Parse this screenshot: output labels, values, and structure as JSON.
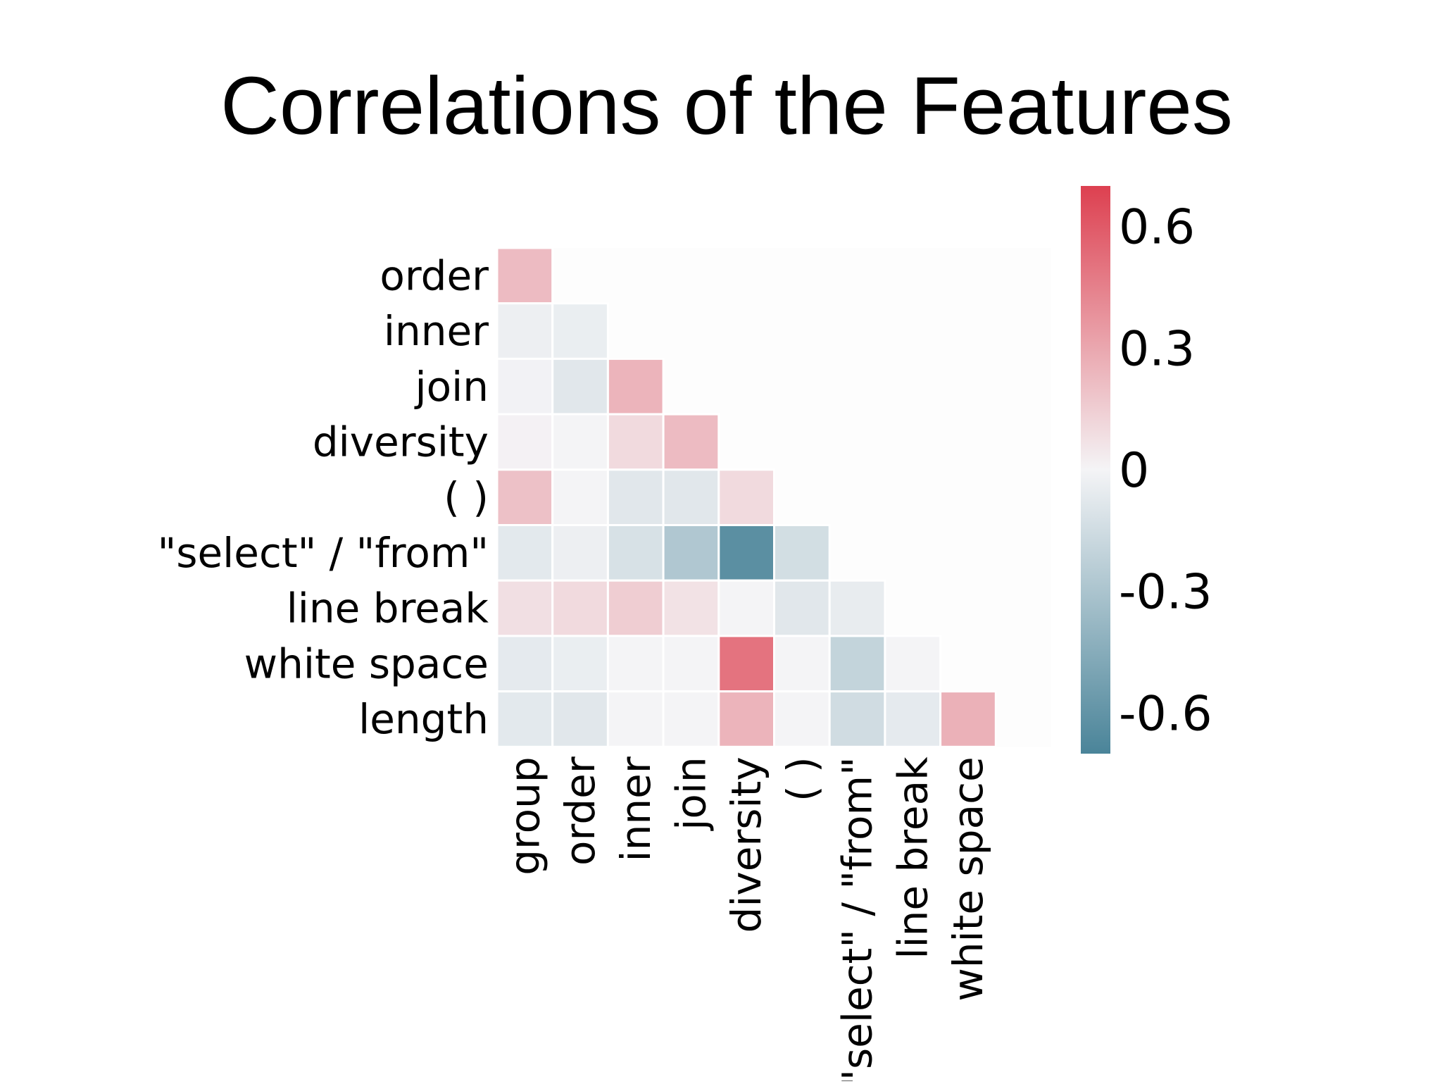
{
  "chart_data": {
    "type": "heatmap",
    "title": "Correlations of the Features",
    "row_labels": [
      "order",
      "inner",
      "join",
      "diversity",
      "( )",
      "\"select\" / \"from\"",
      "line break",
      "white space",
      "length"
    ],
    "col_labels": [
      "group",
      "order",
      "inner",
      "join",
      "diversity",
      "( )",
      "\"select\" / \"from\"",
      "line break",
      "white space"
    ],
    "values": [
      [
        0.22
      ],
      [
        -0.03,
        -0.04
      ],
      [
        -0.01,
        -0.08,
        0.25
      ],
      [
        0.01,
        0.0,
        0.1,
        0.22
      ],
      [
        0.2,
        0.0,
        -0.08,
        -0.08,
        0.1
      ],
      [
        -0.07,
        -0.03,
        -0.12,
        -0.28,
        -0.63,
        -0.14
      ],
      [
        0.08,
        0.1,
        0.15,
        0.07,
        0.0,
        -0.08,
        -0.05
      ],
      [
        -0.06,
        -0.04,
        0.0,
        0.0,
        0.5,
        0.0,
        -0.2,
        0.0
      ],
      [
        -0.07,
        -0.08,
        0.0,
        0.0,
        0.25,
        0.0,
        -0.15,
        -0.06,
        0.26
      ]
    ],
    "mask": "upper-triangle",
    "colorbar": {
      "range": [
        -0.7,
        0.7
      ],
      "ticks": [
        0.6,
        0.3,
        0,
        -0.3,
        -0.6
      ],
      "tick_labels": [
        "0.6",
        "0.3",
        "0",
        "-0.3",
        "-0.6"
      ],
      "colormap": "diverging",
      "low_color": "#4a8499",
      "mid_color": "#f4f4f6",
      "high_color": "#dd4050"
    },
    "grid": false
  }
}
